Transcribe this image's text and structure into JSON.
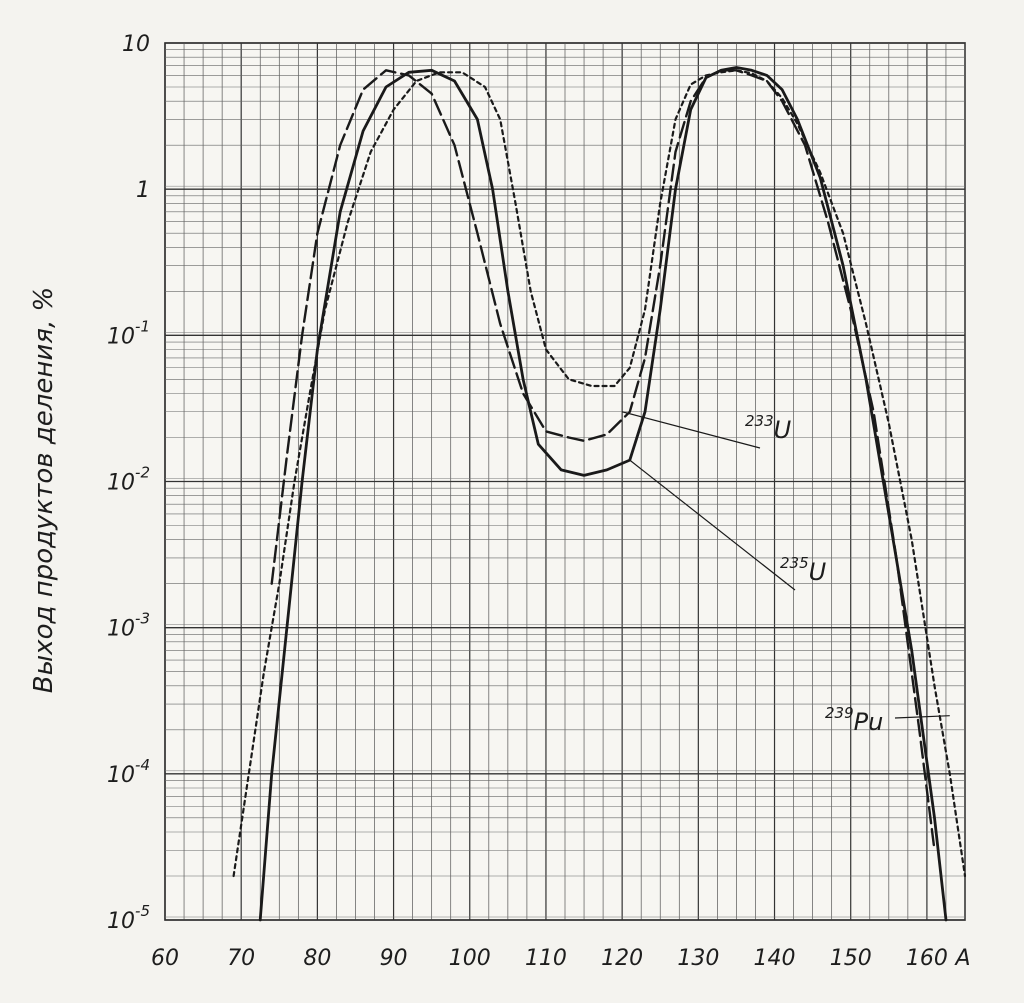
{
  "chart_data": {
    "type": "line",
    "title": "",
    "ylabel": "Выход продуктов деления, %",
    "xlabel": "A",
    "xlim": [
      60,
      165
    ],
    "ylim": [
      1e-05,
      10
    ],
    "yscale": "log",
    "grid": true,
    "xticks": [
      "60",
      "70",
      "80",
      "90",
      "100",
      "110",
      "120",
      "130",
      "140",
      "150",
      "160",
      "A"
    ],
    "yticks": [
      {
        "base": "10",
        "exp": "",
        "value": 10
      },
      {
        "base": "1",
        "exp": "",
        "value": 1
      },
      {
        "base": "10",
        "exp": "-1",
        "value": 0.1
      },
      {
        "base": "10",
        "exp": "-2",
        "value": 0.01
      },
      {
        "base": "10",
        "exp": "-3",
        "value": 0.001
      },
      {
        "base": "10",
        "exp": "-4",
        "value": 0.0001
      },
      {
        "base": "10",
        "exp": "-5",
        "value": 1e-05
      }
    ],
    "series": [
      {
        "name": "235U",
        "style": "solid",
        "points": [
          [
            72.5,
            1e-05
          ],
          [
            74,
            0.0001
          ],
          [
            76,
            0.001
          ],
          [
            78,
            0.01
          ],
          [
            80,
            0.08
          ],
          [
            83,
            0.7
          ],
          [
            86,
            2.5
          ],
          [
            89,
            5
          ],
          [
            92,
            6.3
          ],
          [
            95,
            6.5
          ],
          [
            98,
            5.5
          ],
          [
            101,
            3
          ],
          [
            103,
            1
          ],
          [
            105,
            0.2
          ],
          [
            107,
            0.05
          ],
          [
            109,
            0.018
          ],
          [
            112,
            0.012
          ],
          [
            115,
            0.011
          ],
          [
            118,
            0.012
          ],
          [
            121,
            0.014
          ],
          [
            123,
            0.03
          ],
          [
            125,
            0.15
          ],
          [
            127,
            1
          ],
          [
            129,
            3.5
          ],
          [
            131,
            5.8
          ],
          [
            133,
            6.5
          ],
          [
            135,
            6.8
          ],
          [
            137,
            6.5
          ],
          [
            139,
            6
          ],
          [
            141,
            4.8
          ],
          [
            143,
            3
          ],
          [
            146,
            1.2
          ],
          [
            149,
            0.3
          ],
          [
            152,
            0.05
          ],
          [
            155,
            0.006
          ],
          [
            158,
            0.0007
          ],
          [
            161,
            5e-05
          ],
          [
            162.5,
            1e-05
          ]
        ]
      },
      {
        "name": "233U",
        "style": "dashed",
        "points": [
          [
            74,
            0.002
          ],
          [
            76,
            0.015
          ],
          [
            78,
            0.1
          ],
          [
            80,
            0.5
          ],
          [
            83,
            2
          ],
          [
            86,
            4.8
          ],
          [
            89,
            6.5
          ],
          [
            92,
            6
          ],
          [
            95,
            4.5
          ],
          [
            98,
            2
          ],
          [
            101,
            0.5
          ],
          [
            104,
            0.12
          ],
          [
            107,
            0.04
          ],
          [
            110,
            0.022
          ],
          [
            113,
            0.02
          ],
          [
            115,
            0.019
          ],
          [
            118,
            0.021
          ],
          [
            121,
            0.03
          ],
          [
            123,
            0.07
          ],
          [
            125,
            0.3
          ],
          [
            127,
            1.8
          ],
          [
            129,
            4
          ],
          [
            131,
            5.8
          ],
          [
            133,
            6.5
          ],
          [
            135,
            6.5
          ],
          [
            137,
            6
          ],
          [
            139,
            5.5
          ],
          [
            141,
            4
          ],
          [
            144,
            2
          ],
          [
            147,
            0.6
          ],
          [
            150,
            0.15
          ],
          [
            153,
            0.03
          ],
          [
            156,
            0.003
          ],
          [
            159,
            0.0002
          ],
          [
            161,
            3e-05
          ]
        ]
      },
      {
        "name": "239Pu",
        "style": "dotted",
        "points": [
          [
            69,
            2e-05
          ],
          [
            71,
            0.0001
          ],
          [
            73,
            0.0005
          ],
          [
            75,
            0.002
          ],
          [
            77,
            0.01
          ],
          [
            79,
            0.04
          ],
          [
            81,
            0.15
          ],
          [
            84,
            0.6
          ],
          [
            87,
            1.8
          ],
          [
            90,
            3.5
          ],
          [
            93,
            5.5
          ],
          [
            96,
            6.3
          ],
          [
            99,
            6.3
          ],
          [
            102,
            5
          ],
          [
            104,
            3
          ],
          [
            106,
            0.8
          ],
          [
            108,
            0.2
          ],
          [
            110,
            0.08
          ],
          [
            113,
            0.05
          ],
          [
            116,
            0.045
          ],
          [
            119,
            0.045
          ],
          [
            121,
            0.06
          ],
          [
            123,
            0.15
          ],
          [
            125,
            0.8
          ],
          [
            127,
            3
          ],
          [
            129,
            5.2
          ],
          [
            131,
            6
          ],
          [
            133,
            6.3
          ],
          [
            135,
            6.5
          ],
          [
            137,
            6.2
          ],
          [
            139,
            5.5
          ],
          [
            141,
            4.2
          ],
          [
            143,
            2.8
          ],
          [
            146,
            1.3
          ],
          [
            149,
            0.5
          ],
          [
            152,
            0.12
          ],
          [
            155,
            0.025
          ],
          [
            158,
            0.004
          ],
          [
            161,
            0.0004
          ],
          [
            163,
            0.0001
          ],
          [
            165,
            2e-05
          ]
        ]
      }
    ],
    "annotations": [
      {
        "id": "233U",
        "sup": "233",
        "sym": "U",
        "target": [
          120,
          0.03
        ]
      },
      {
        "id": "235U",
        "sup": "235",
        "sym": "U",
        "target": [
          121,
          0.014
        ]
      },
      {
        "id": "239Pu",
        "sup": "239",
        "sym": "Pu",
        "target": [
          163,
          0.00025
        ]
      }
    ]
  }
}
